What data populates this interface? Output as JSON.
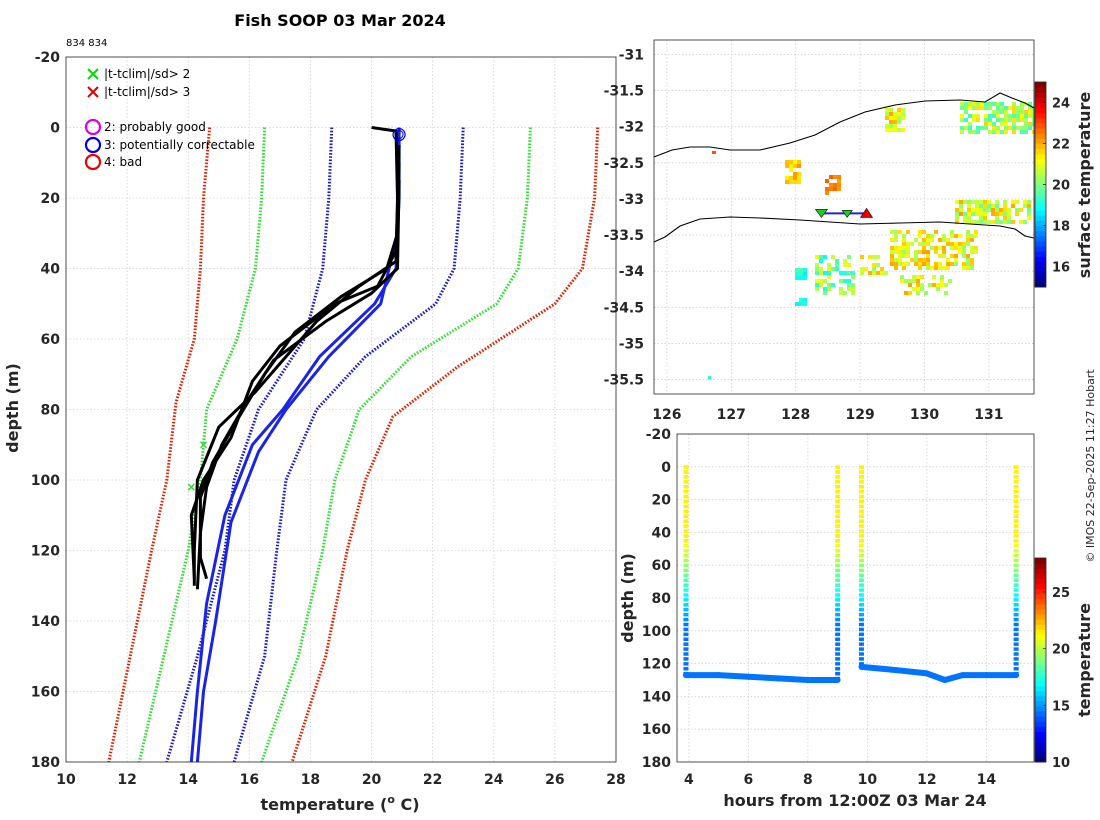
{
  "figure": {
    "title": "Fish SOOP 03 Mar 2024",
    "id_label": "834 834",
    "credit": "© IMOS 22-Sep-2025 11:27 Hobart"
  },
  "legend": {
    "items": [
      {
        "marker": "x",
        "color": "#00dd00",
        "label": "|t-tclim|/sd> 2"
      },
      {
        "marker": "x",
        "color": "#dd0000",
        "label": "|t-tclim|/sd> 3"
      },
      {
        "marker": "o",
        "color": "#dd00dd",
        "label": "2: probably good"
      },
      {
        "marker": "o",
        "color": "#0000dd",
        "label": "3: potentially correctable"
      },
      {
        "marker": "o",
        "color": "#ee0000",
        "label": "4: bad"
      }
    ]
  },
  "colors": {
    "profile": "#000000",
    "flagged_profile": "#1a24e6",
    "clim_sd2": "#33dd33",
    "clim_sd3": "#dd2200",
    "clim_sd1": "#1a1acc",
    "coast": "#000000"
  },
  "chart_data": [
    {
      "type": "line",
      "name": "profile-panel",
      "xlabel": "temperature (o C)",
      "xlabel_main": "temperature (",
      "xlabel_sup": "o",
      "xlabel_end": " C)",
      "ylabel": "depth (m)",
      "xlim": [
        10,
        28
      ],
      "ylim": [
        -20,
        180
      ],
      "xticks": [
        10,
        12,
        14,
        16,
        18,
        20,
        22,
        24,
        26,
        28
      ],
      "yticks": [
        -20,
        0,
        20,
        40,
        60,
        80,
        100,
        120,
        140,
        160,
        180
      ],
      "climatology": [
        {
          "name": "clim-minus-3sd",
          "color": "#dd2200",
          "points": [
            [
              14.7,
              0
            ],
            [
              14.5,
              20
            ],
            [
              14.4,
              40
            ],
            [
              14.2,
              60
            ],
            [
              13.6,
              78
            ],
            [
              13.3,
              100
            ],
            [
              12.8,
              120
            ],
            [
              12.1,
              150
            ],
            [
              11.4,
              180
            ]
          ]
        },
        {
          "name": "clim-minus-2sd",
          "color": "#33dd33",
          "points": [
            [
              16.5,
              0
            ],
            [
              16.4,
              20
            ],
            [
              16.2,
              40
            ],
            [
              15.6,
              60
            ],
            [
              14.6,
              80
            ],
            [
              14.4,
              100
            ],
            [
              14.0,
              120
            ],
            [
              13.2,
              150
            ],
            [
              12.4,
              180
            ]
          ]
        },
        {
          "name": "clim-minus-1sd",
          "color": "#1a1acc",
          "points": [
            [
              18.7,
              0
            ],
            [
              18.6,
              20
            ],
            [
              18.4,
              40
            ],
            [
              17.8,
              60
            ],
            [
              16.3,
              80
            ],
            [
              15.5,
              100
            ],
            [
              15.2,
              120
            ],
            [
              14.3,
              150
            ],
            [
              13.3,
              180
            ]
          ]
        },
        {
          "name": "clim-plus-1sd",
          "color": "#1a1acc",
          "points": [
            [
              23.0,
              0
            ],
            [
              22.9,
              20
            ],
            [
              22.7,
              40
            ],
            [
              22.1,
              50
            ],
            [
              19.8,
              65
            ],
            [
              18.2,
              80
            ],
            [
              17.2,
              100
            ],
            [
              16.9,
              120
            ],
            [
              16.5,
              150
            ],
            [
              15.5,
              180
            ]
          ]
        },
        {
          "name": "clim-plus-2sd",
          "color": "#33dd33",
          "points": [
            [
              25.2,
              0
            ],
            [
              25.1,
              20
            ],
            [
              24.8,
              40
            ],
            [
              24.1,
              50
            ],
            [
              21.3,
              65
            ],
            [
              19.6,
              80
            ],
            [
              18.8,
              100
            ],
            [
              18.4,
              120
            ],
            [
              17.6,
              150
            ],
            [
              16.4,
              180
            ]
          ]
        },
        {
          "name": "clim-plus-3sd",
          "color": "#dd2200",
          "points": [
            [
              27.4,
              0
            ],
            [
              27.3,
              20
            ],
            [
              26.9,
              40
            ],
            [
              26.0,
              50
            ],
            [
              22.8,
              68
            ],
            [
              20.7,
              82
            ],
            [
              19.8,
              100
            ],
            [
              19.2,
              120
            ],
            [
              18.5,
              150
            ],
            [
              17.4,
              180
            ]
          ]
        }
      ],
      "profiles": [
        {
          "name": "flagged-profile",
          "color": "#1a24e6",
          "points": [
            [
              20.9,
              0
            ],
            [
              20.9,
              20
            ],
            [
              20.8,
              40
            ],
            [
              20.1,
              50
            ],
            [
              18.3,
              65
            ],
            [
              17.1,
              80
            ],
            [
              16.1,
              90
            ],
            [
              15.2,
              110
            ],
            [
              14.6,
              135
            ],
            [
              14.3,
              160
            ],
            [
              14.1,
              180
            ]
          ]
        },
        {
          "name": "flagged-profile-2",
          "color": "#1a24e6",
          "points": [
            [
              20.9,
              0
            ],
            [
              20.85,
              30
            ],
            [
              20.3,
              50
            ],
            [
              18.6,
              65
            ],
            [
              17.2,
              80
            ],
            [
              16.3,
              92
            ],
            [
              15.4,
              112
            ],
            [
              14.9,
              140
            ],
            [
              14.5,
              160
            ],
            [
              14.3,
              180
            ]
          ]
        },
        {
          "name": "cast-1",
          "color": "#000000",
          "points": [
            [
              20.0,
              0
            ],
            [
              20.8,
              1
            ],
            [
              20.85,
              20
            ],
            [
              20.8,
              38
            ],
            [
              19.6,
              45
            ],
            [
              18.2,
              55
            ],
            [
              17.2,
              65
            ],
            [
              16.2,
              75
            ],
            [
              15.0,
              85
            ],
            [
              14.3,
              100
            ],
            [
              14.2,
              120
            ],
            [
              14.2,
              130
            ]
          ]
        },
        {
          "name": "cast-2",
          "color": "#000000",
          "points": [
            [
              20.9,
              5
            ],
            [
              20.85,
              30
            ],
            [
              20.5,
              40
            ],
            [
              19.0,
              48
            ],
            [
              17.5,
              58
            ],
            [
              16.5,
              70
            ],
            [
              15.6,
              83
            ],
            [
              14.8,
              95
            ],
            [
              14.4,
              105
            ],
            [
              14.4,
              122
            ],
            [
              14.6,
              128
            ]
          ]
        },
        {
          "name": "cast-3",
          "color": "#000000",
          "points": [
            [
              20.9,
              10
            ],
            [
              20.8,
              35
            ],
            [
              20.2,
              45
            ],
            [
              18.8,
              50
            ],
            [
              17.0,
              62
            ],
            [
              16.1,
              72
            ],
            [
              15.4,
              88
            ],
            [
              14.5,
              100
            ],
            [
              14.1,
              110
            ],
            [
              14.2,
              128
            ]
          ]
        },
        {
          "name": "cast-4",
          "color": "#000000",
          "points": [
            [
              20.9,
              15
            ],
            [
              20.85,
              40
            ],
            [
              20.0,
              47
            ],
            [
              18.5,
              55
            ],
            [
              16.8,
              66
            ],
            [
              15.9,
              78
            ],
            [
              15.1,
              90
            ],
            [
              14.6,
              102
            ],
            [
              14.4,
              115
            ],
            [
              14.3,
              131
            ]
          ]
        }
      ],
      "qc_markers": [
        {
          "name": "qc-flag-3-marker",
          "temperature": 20.9,
          "depth": 2,
          "color": "#0000dd"
        }
      ]
    },
    {
      "type": "heatmap",
      "name": "track-map",
      "xlim": [
        125.8,
        131.7
      ],
      "ylim": [
        -35.7,
        -30.8
      ],
      "xticks": [
        126,
        127,
        128,
        129,
        130,
        131
      ],
      "yticks": [
        -31,
        -31.5,
        -32,
        -32.5,
        -33,
        -33.5,
        -34,
        -34.5,
        -35,
        -35.5
      ],
      "colorbar": {
        "label": "surface temperature",
        "range": [
          15,
          25
        ],
        "ticks": [
          16,
          18,
          20,
          22,
          24
        ]
      },
      "ship_track": {
        "start": [
          128.4,
          -33.2
        ],
        "end": [
          129.1,
          -33.2
        ]
      }
    },
    {
      "type": "scatter",
      "name": "depth-time-section",
      "xlabel": "hours from 12:00Z 03 Mar 24",
      "ylabel": "depth (m)",
      "xlim": [
        3.6,
        15.6
      ],
      "ylim": [
        -20,
        180
      ],
      "xticks": [
        4,
        6,
        8,
        10,
        12,
        14
      ],
      "yticks": [
        -20,
        0,
        20,
        40,
        60,
        80,
        100,
        120,
        140,
        160,
        180
      ],
      "colorbar": {
        "label": "temperature",
        "range": [
          10,
          28
        ],
        "ticks": [
          10,
          15,
          20,
          25
        ]
      },
      "casts": [
        {
          "time": 3.9,
          "max_depth": 127
        },
        {
          "time": 9.0,
          "max_depth": 130
        },
        {
          "time": 9.8,
          "max_depth": 122
        },
        {
          "time": 15.0,
          "max_depth": 127
        }
      ],
      "bottom_track": [
        [
          3.9,
          127
        ],
        [
          5.0,
          127
        ],
        [
          6.0,
          128
        ],
        [
          7.0,
          129
        ],
        [
          8.0,
          130
        ],
        [
          9.0,
          130
        ],
        [
          9.8,
          122
        ],
        [
          11.0,
          124
        ],
        [
          12.0,
          126
        ],
        [
          12.6,
          130
        ],
        [
          13.2,
          127
        ],
        [
          14.0,
          127
        ],
        [
          15.0,
          127
        ]
      ]
    }
  ]
}
